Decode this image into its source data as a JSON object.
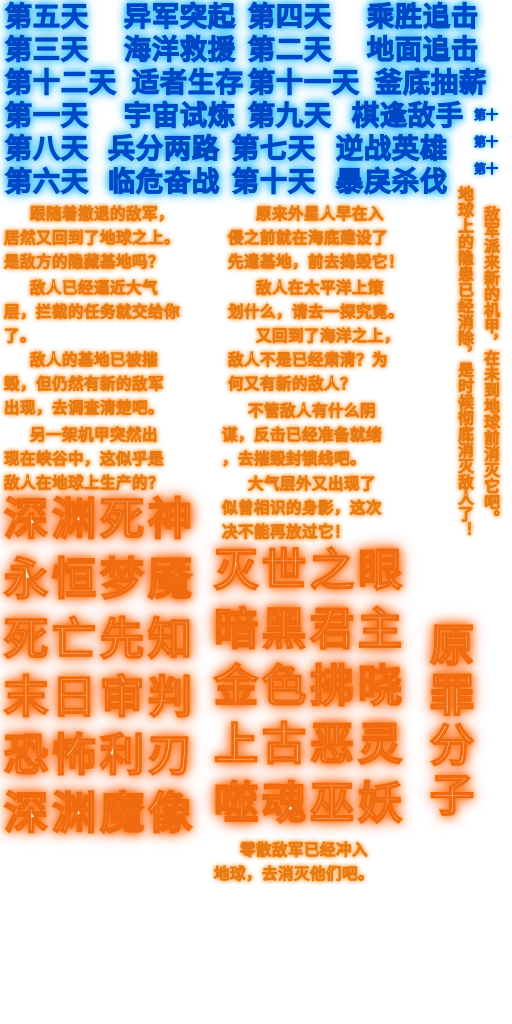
{
  "stage_titles": {
    "row1": [
      "第五天",
      "异军突起",
      "第四天",
      "乘胜追击"
    ],
    "row2": [
      "第三天",
      "海洋救援",
      "第二天",
      "地面追击"
    ],
    "row3": [
      "第十二天",
      "适者生存",
      "第十一天",
      "釜底抽薪"
    ],
    "row4": [
      "第一天",
      "宇宙试炼",
      "第九天",
      "棋逢敌手"
    ],
    "row5": [
      "第八天",
      "兵分两路",
      "第七天",
      "逆战英雄"
    ],
    "row6": [
      "第六天",
      "临危奋战",
      "第十天",
      "暴戾杀伐"
    ],
    "side_small": [
      "第十",
      "第十",
      "第十"
    ]
  },
  "story": {
    "p1_l1": "跟随着撤退的敌军，",
    "p1_l2": "居然又回到了地球之上。",
    "p1_l3": "是敌方的隐藏基地吗？",
    "p2_l1": "原来外星人早在入",
    "p2_l2": "侵之前就在海底建设了",
    "p2_l3": "先遣基地，前去捣毁它！",
    "p3_l1": "敌人已经逼近大气",
    "p3_l2": "层，拦截的任务就交给你",
    "p3_l3": "了。",
    "p4_l1": "敌人在太平洋上策",
    "p4_l2": "划什么，请去一探究竟。",
    "p5_l1": "又回到了海洋之上，",
    "p5_l2": "敌人不是已经肃清？为",
    "p5_l3": "何又有新的敌人？",
    "p6_l1": "敌人的基地已被摧",
    "p6_l2": "毁，但仍然有新的敌军",
    "p6_l3": "出现，去调查清楚吧。",
    "p7_l1": "不管敌人有什么阴",
    "p7_l2": "谋，反击已经准备就绪",
    "p7_l3": "，去摧毁封锁线吧。",
    "p8_l1": "另一架机甲突然出",
    "p8_l2": "现在峡谷中，这似乎是",
    "p8_l3": "敌人在地球上生产的？",
    "p9_l1": "大气层外又出现了",
    "p9_l2": "似曾相识的身影，这次",
    "p9_l3": "决不能再放过它！",
    "p10_l1": "零散敌军已经冲入",
    "p10_l2": "地球，去消灭他们吧。",
    "v1": "敌军派来新的机甲，在未到地球前消灭它吧。",
    "v2": "地球上的隐患已经消除，是时候彻底消灭敌人了！"
  },
  "bosses": {
    "left": [
      "深渊死神",
      "永恒梦魇",
      "死亡先知",
      "末日审判",
      "恐怖利刃",
      "深渊魔像"
    ],
    "right": [
      "灭世之眼",
      "暗黑君主",
      "金色拂晓",
      "上古恶灵",
      "噬魂巫妖"
    ],
    "vertical": "原罪分子"
  }
}
